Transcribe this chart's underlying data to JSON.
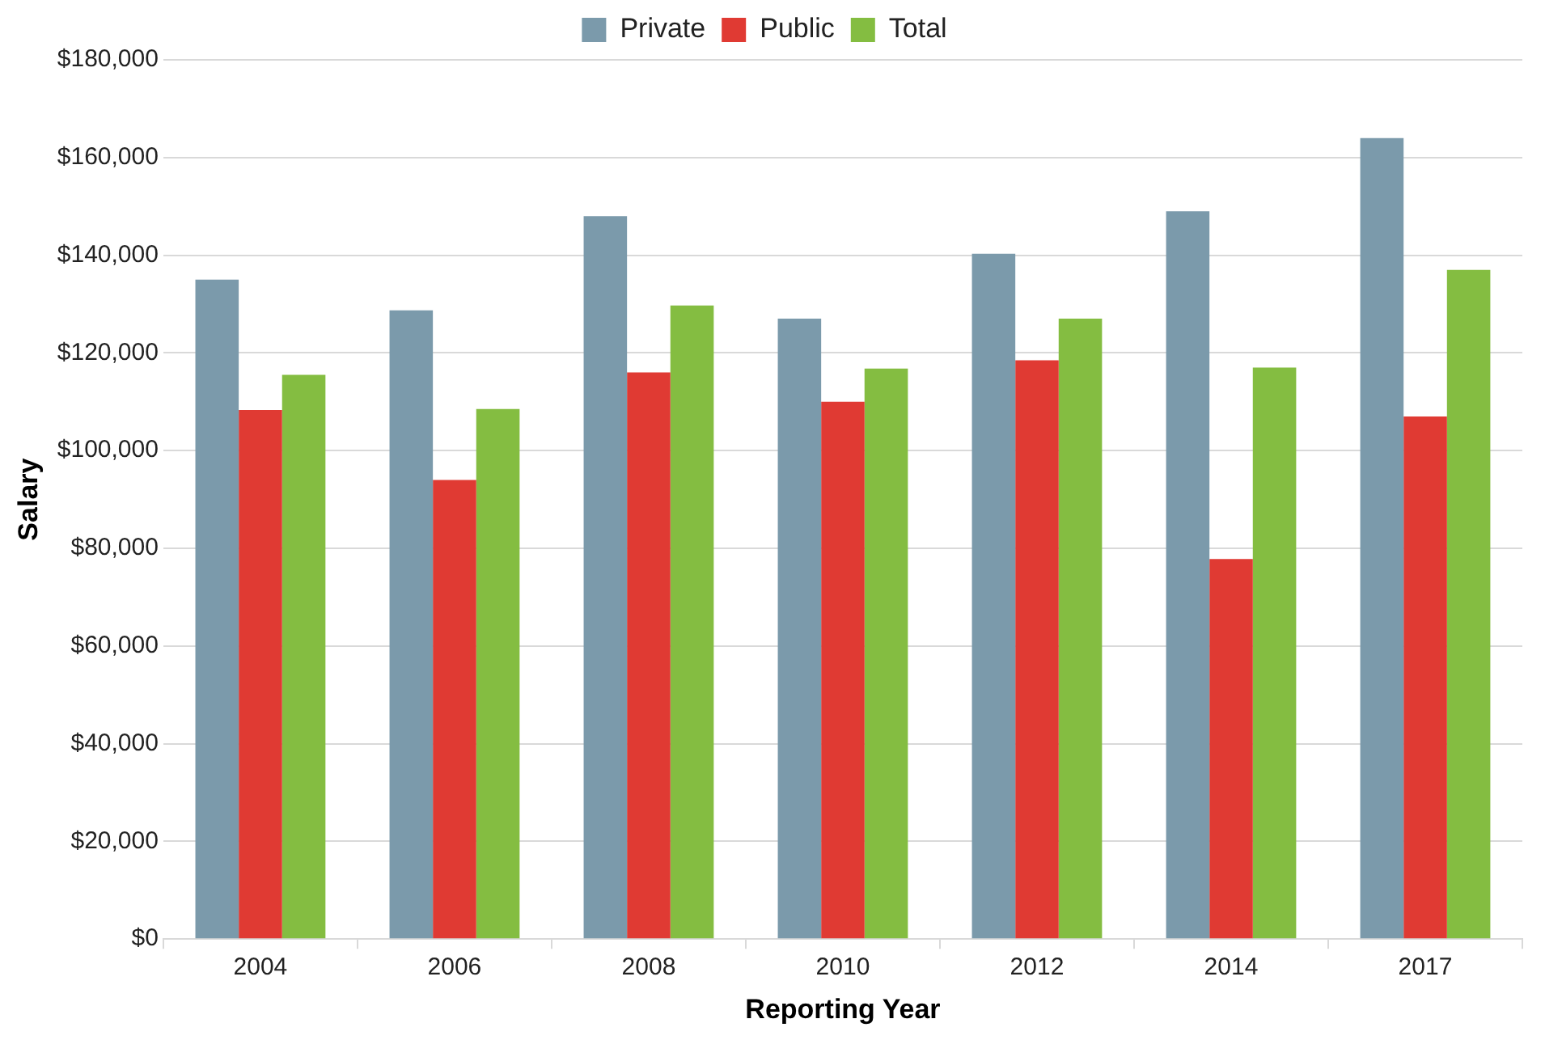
{
  "chart_data": {
    "type": "bar",
    "xlabel": "Reporting Year",
    "ylabel": "Salary",
    "categories": [
      "2004",
      "2006",
      "2008",
      "2010",
      "2012",
      "2014",
      "2017"
    ],
    "series": [
      {
        "name": "Private",
        "color": "#7b9aab",
        "values": [
          135000,
          128700,
          148000,
          127000,
          140300,
          149000,
          164000
        ]
      },
      {
        "name": "Public",
        "color": "#e03a33",
        "values": [
          108300,
          94000,
          116000,
          110000,
          118500,
          77800,
          107000
        ]
      },
      {
        "name": "Total",
        "color": "#84bd41",
        "values": [
          115500,
          108500,
          129700,
          116800,
          127000,
          117000,
          137000
        ]
      }
    ],
    "ylim": [
      0,
      180000
    ],
    "yticks": [
      {
        "value": 0,
        "label": "$0"
      },
      {
        "value": 20000,
        "label": "$20,000"
      },
      {
        "value": 40000,
        "label": "$40,000"
      },
      {
        "value": 60000,
        "label": "$60,000"
      },
      {
        "value": 80000,
        "label": "$80,000"
      },
      {
        "value": 100000,
        "label": "$100,000"
      },
      {
        "value": 120000,
        "label": "$120,000"
      },
      {
        "value": 140000,
        "label": "$140,000"
      },
      {
        "value": 160000,
        "label": "$160,000"
      },
      {
        "value": 180000,
        "label": "$180,000"
      }
    ],
    "grid": "y",
    "legend": "top"
  }
}
